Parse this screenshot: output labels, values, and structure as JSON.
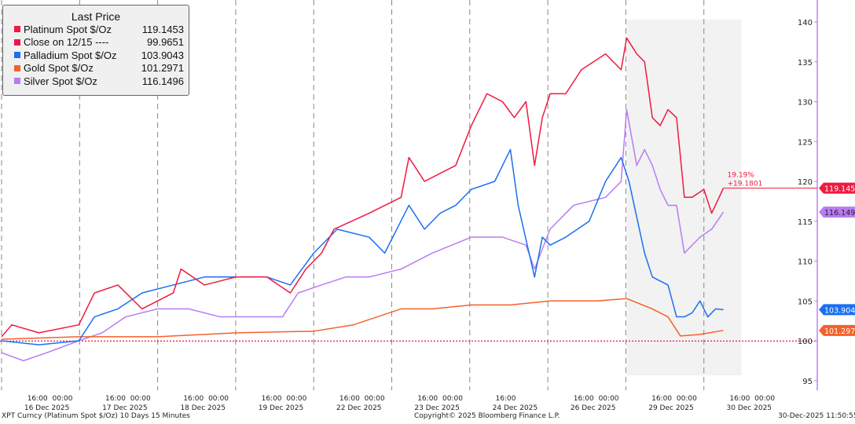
{
  "chart_data": {
    "type": "line",
    "title": "Last Price",
    "footer_left": "XPT Curncy (Platinum Spot  $/Oz) 10 Days 15 Minutes",
    "footer_center": "Copyright© 2025 Bloomberg Finance L.P.",
    "footer_right": "30-Dec-2025 11:50:55",
    "ylim": [
      94,
      141
    ],
    "yticks": [
      "95",
      "100",
      "105",
      "110",
      "115",
      "120",
      "125",
      "130",
      "135",
      "140"
    ],
    "xlim": [
      0,
      10.45
    ],
    "days": [
      "16 Dec 2025",
      "17 Dec 2025",
      "18 Dec 2025",
      "19 Dec 2025",
      "22 Dec 2025",
      "23 Dec 2025",
      "24 Dec 2025",
      "26 Dec 2025",
      "29 Dec 2025",
      "30 Dec 2025"
    ],
    "time_labels": [
      "16:00",
      "00:00"
    ],
    "shaded_range": [
      8.01,
      9.48
    ],
    "reference_line": {
      "name": "Close on 12/15 ----",
      "value": 99.9651,
      "color": "#e8174a"
    },
    "annotation": {
      "pct": "19.19%",
      "change": "+19.1801"
    },
    "series": [
      {
        "name": "Platinum Spot $/Oz",
        "last": "119.1453",
        "color": "#f0193f",
        "points": [
          [
            0,
            100.5
          ],
          [
            0.13,
            102
          ],
          [
            0.48,
            101
          ],
          [
            0.99,
            102
          ],
          [
            1.19,
            106
          ],
          [
            1.49,
            107
          ],
          [
            1.8,
            104
          ],
          [
            2.2,
            106
          ],
          [
            2.3,
            109
          ],
          [
            2.6,
            107
          ],
          [
            3.0,
            108
          ],
          [
            3.4,
            108
          ],
          [
            3.7,
            106
          ],
          [
            3.9,
            109
          ],
          [
            4.1,
            111
          ],
          [
            4.26,
            114
          ],
          [
            4.71,
            116
          ],
          [
            5.12,
            118
          ],
          [
            5.22,
            123
          ],
          [
            5.42,
            120
          ],
          [
            5.62,
            121
          ],
          [
            5.82,
            122
          ],
          [
            6.02,
            127
          ],
          [
            6.22,
            131
          ],
          [
            6.42,
            130
          ],
          [
            6.57,
            128
          ],
          [
            6.72,
            130
          ],
          [
            6.83,
            122
          ],
          [
            6.93,
            128
          ],
          [
            7.03,
            131
          ],
          [
            7.23,
            131
          ],
          [
            7.43,
            134
          ],
          [
            7.74,
            136
          ],
          [
            7.94,
            134
          ],
          [
            8.01,
            138
          ],
          [
            8.14,
            136
          ],
          [
            8.24,
            135
          ],
          [
            8.34,
            128
          ],
          [
            8.44,
            127
          ],
          [
            8.54,
            129
          ],
          [
            8.65,
            128
          ],
          [
            8.75,
            118
          ],
          [
            8.85,
            118
          ],
          [
            9.0,
            119
          ],
          [
            9.1,
            116
          ],
          [
            9.25,
            119.15
          ]
        ]
      },
      {
        "name": "Palladium Spot $/Oz",
        "last": "103.9043",
        "color": "#1a6ff2",
        "points": [
          [
            0,
            100
          ],
          [
            0.48,
            99.5
          ],
          [
            0.99,
            100
          ],
          [
            1.19,
            103
          ],
          [
            1.49,
            104
          ],
          [
            1.8,
            106
          ],
          [
            2.2,
            107
          ],
          [
            2.6,
            108
          ],
          [
            3.0,
            108
          ],
          [
            3.4,
            108
          ],
          [
            3.7,
            107
          ],
          [
            4.0,
            111
          ],
          [
            4.3,
            114
          ],
          [
            4.71,
            113
          ],
          [
            4.91,
            111
          ],
          [
            5.22,
            117
          ],
          [
            5.42,
            114
          ],
          [
            5.62,
            116
          ],
          [
            5.82,
            117
          ],
          [
            6.02,
            119
          ],
          [
            6.32,
            120
          ],
          [
            6.52,
            124
          ],
          [
            6.62,
            117
          ],
          [
            6.83,
            108
          ],
          [
            6.93,
            113
          ],
          [
            7.03,
            112
          ],
          [
            7.23,
            113
          ],
          [
            7.53,
            115
          ],
          [
            7.74,
            120
          ],
          [
            7.94,
            123
          ],
          [
            8.04,
            120
          ],
          [
            8.24,
            111
          ],
          [
            8.34,
            108
          ],
          [
            8.54,
            107
          ],
          [
            8.65,
            103
          ],
          [
            8.75,
            103
          ],
          [
            8.85,
            103.5
          ],
          [
            8.95,
            105
          ],
          [
            9.05,
            103
          ],
          [
            9.15,
            104
          ],
          [
            9.25,
            103.9
          ]
        ]
      },
      {
        "name": "Gold Spot $/Oz",
        "last": "101.2971",
        "color": "#f4612a",
        "points": [
          [
            0,
            100.2
          ],
          [
            0.99,
            100.5
          ],
          [
            2.0,
            100.5
          ],
          [
            3.0,
            101
          ],
          [
            4.0,
            101.2
          ],
          [
            4.51,
            102
          ],
          [
            5.12,
            104
          ],
          [
            5.52,
            104
          ],
          [
            6.02,
            104.5
          ],
          [
            6.52,
            104.5
          ],
          [
            7.03,
            105
          ],
          [
            7.63,
            105
          ],
          [
            8.01,
            105.3
          ],
          [
            8.34,
            104
          ],
          [
            8.54,
            103
          ],
          [
            8.7,
            100.6
          ],
          [
            8.95,
            100.8
          ],
          [
            9.25,
            101.3
          ]
        ]
      },
      {
        "name": "Silver Spot $/Oz",
        "last": "116.1496",
        "color": "#b97cf3",
        "points": [
          [
            0,
            98.5
          ],
          [
            0.28,
            97.5
          ],
          [
            0.58,
            98.5
          ],
          [
            0.99,
            100
          ],
          [
            1.29,
            101
          ],
          [
            1.59,
            103
          ],
          [
            2.0,
            104
          ],
          [
            2.4,
            104
          ],
          [
            2.8,
            103
          ],
          [
            3.2,
            103
          ],
          [
            3.6,
            103
          ],
          [
            3.8,
            106
          ],
          [
            4.1,
            107
          ],
          [
            4.41,
            108
          ],
          [
            4.71,
            108
          ],
          [
            5.12,
            109
          ],
          [
            5.52,
            111
          ],
          [
            6.02,
            113
          ],
          [
            6.42,
            113
          ],
          [
            6.72,
            112
          ],
          [
            6.83,
            109
          ],
          [
            7.03,
            114
          ],
          [
            7.33,
            117
          ],
          [
            7.74,
            118
          ],
          [
            7.94,
            120
          ],
          [
            8.01,
            129
          ],
          [
            8.14,
            122
          ],
          [
            8.24,
            124
          ],
          [
            8.34,
            122
          ],
          [
            8.44,
            119
          ],
          [
            8.54,
            117
          ],
          [
            8.65,
            117
          ],
          [
            8.75,
            111
          ],
          [
            8.95,
            113
          ],
          [
            9.1,
            114
          ],
          [
            9.25,
            116.15
          ]
        ]
      }
    ]
  }
}
